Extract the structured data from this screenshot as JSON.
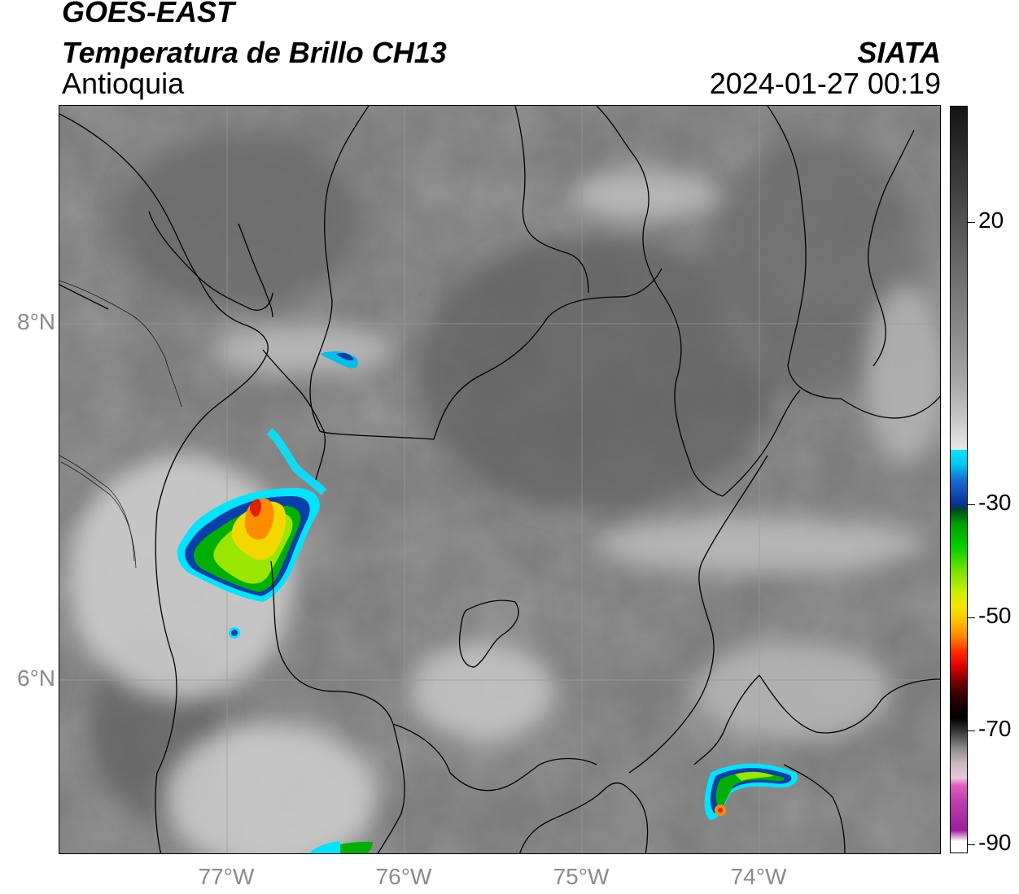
{
  "header": {
    "satellite": "GOES-EAST",
    "product": "Temperatura de Brillo CH13",
    "region": "Antioquia",
    "organization": "SIATA",
    "timestamp": "2024-01-27 00:19"
  },
  "axes": {
    "lat_labels": [
      "8°N",
      "6°N"
    ],
    "lon_labels": [
      "77°W",
      "76°W",
      "75°W",
      "74°W"
    ]
  },
  "colorbar": {
    "tick_labels": [
      "20",
      "-30",
      "-50",
      "-70",
      "-90"
    ],
    "colors": {
      "white": "#ffffff",
      "cyan": "#00e5ff",
      "blue": "#0a2e8c",
      "green": "#00c000",
      "yellow": "#f5e600",
      "orange": "#ff8800",
      "red": "#e00000",
      "black": "#000000",
      "magenta": "#cc44cc"
    }
  },
  "icons": {
    "map": "satellite-brightness-temperature-map",
    "borders": "administrative-boundaries"
  }
}
